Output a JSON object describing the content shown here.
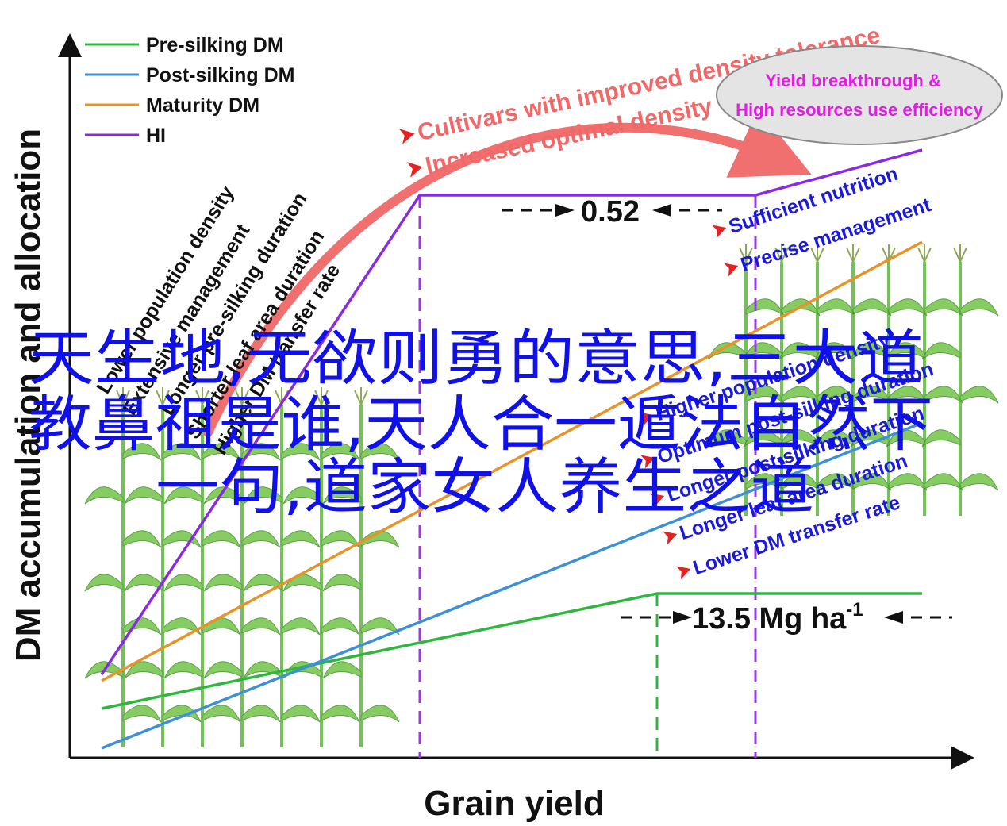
{
  "chart_data": {
    "type": "line",
    "xlabel": "Grain yield",
    "ylabel": "DM accumulation and allocation",
    "series": [
      {
        "name": "Pre-silking DM",
        "color": "#2db83d"
      },
      {
        "name": "Post-silking DM",
        "color": "#3d8fd8"
      },
      {
        "name": "Maturity DM",
        "color": "#e8922a"
      },
      {
        "name": "HI",
        "color": "#8a2be2"
      }
    ],
    "annotations": {
      "hi_plateau_label": "0.52",
      "pre_silking_plateau_label": "13.5 Mg ha",
      "pre_silking_plateau_superscript": "-1"
    },
    "left_factors": [
      "Lower population density",
      "Extensive management",
      "Longer pre-silking duration",
      "Shorter leaf area duration",
      "Higher DM transfer rate"
    ],
    "right_factors": [
      "Sufficient nutrition",
      "Precise management",
      "Higher population density",
      "Optimum post-silking duration",
      "Longer post-silking duration",
      "Longer leaf area duration",
      "Lower DM transfer rate"
    ],
    "arrow_labels": [
      "Cultivars with improved density tolerance",
      "Increased optimal density"
    ],
    "ellipse_lines": [
      "Yield breakthrough &",
      "High resources use efficiency"
    ]
  },
  "overlay": {
    "lines": [
      "天生地,无欲则勇的意思,三大道",
      "教鼻祖是谁,天人合一遁法自然下",
      "一句,道家女人养生之道"
    ]
  }
}
